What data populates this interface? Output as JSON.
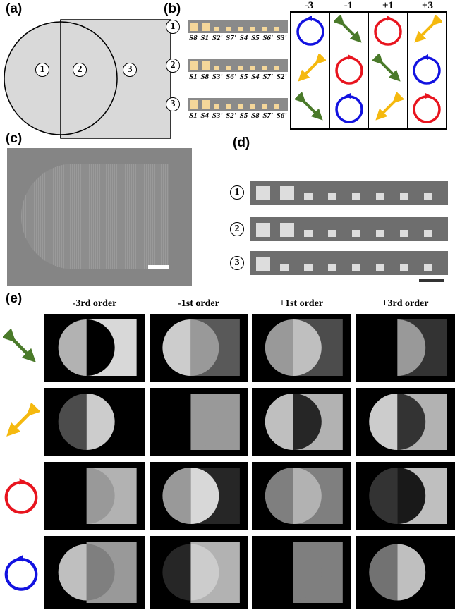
{
  "panels": {
    "a": {
      "label": "(a)",
      "regions": [
        "1",
        "2",
        "3"
      ]
    },
    "b": {
      "label": "(b)",
      "rows": [
        {
          "num": "1",
          "sequence": "S8 S1 S2' S7' S4 S5 S6' S3'",
          "cells": [
            "rcp-blue",
            "linear-green",
            "lcp-red",
            "linear-yellow"
          ]
        },
        {
          "num": "2",
          "sequence": "S1 S8 S3' S6' S5 S4 S7' S2'",
          "cells": [
            "linear-yellow",
            "lcp-red",
            "linear-green",
            "rcp-blue"
          ]
        },
        {
          "num": "3",
          "sequence": "S1 S4 S3' S2' S5 S8 S7' S6'",
          "cells": [
            "linear-green",
            "rcp-blue",
            "linear-yellow",
            "lcp-red"
          ]
        }
      ],
      "columns": [
        "-3",
        "-1",
        "+1",
        "+3"
      ]
    },
    "c": {
      "label": "(c)"
    },
    "d": {
      "label": "(d)",
      "rows": [
        "1",
        "2",
        "3"
      ]
    },
    "e": {
      "label": "(e)",
      "columns": [
        "-3rd order",
        "-1st order",
        "+1st order",
        "+3rd order"
      ],
      "rows": [
        "linear-green",
        "linear-yellow",
        "lcp-red",
        "rcp-blue"
      ]
    }
  },
  "colors": {
    "green": "#4a7a2a",
    "yellow": "#f5b90f",
    "red": "#e8141e",
    "blue": "#1212e0",
    "gray": "#d9d9d9"
  }
}
